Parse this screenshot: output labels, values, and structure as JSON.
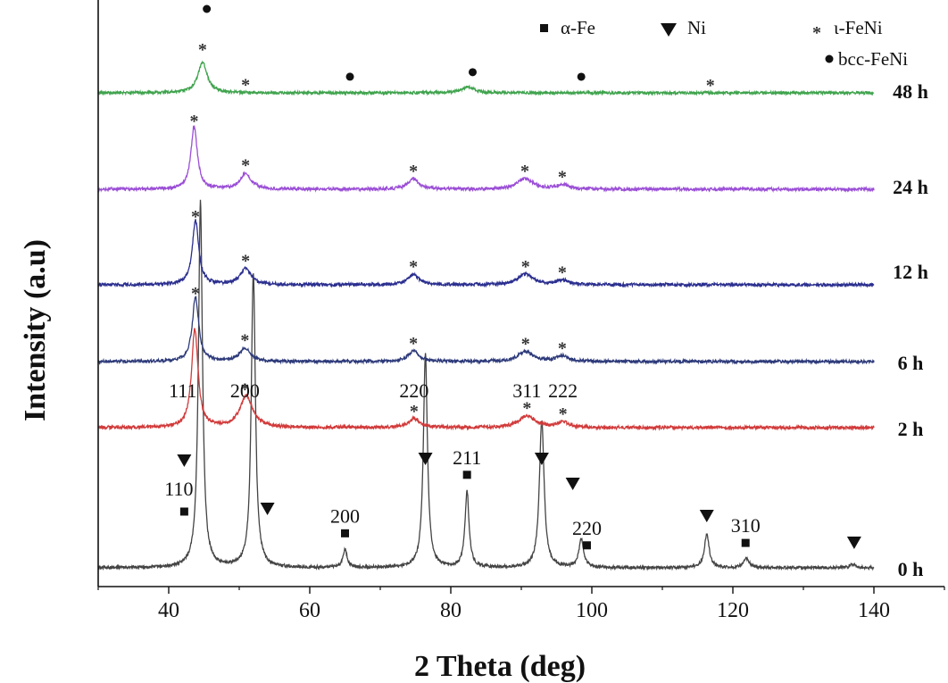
{
  "chart_data": {
    "type": "line",
    "xlabel": "2 Theta (deg)",
    "ylabel": "Intensity (a.u)",
    "xlim": [
      30,
      150
    ],
    "x_ticks": [
      40,
      60,
      80,
      100,
      120,
      140
    ],
    "x_tick_labels": [
      "40",
      "60",
      "80",
      "100",
      "120",
      "140"
    ],
    "y_ticks_shown": false,
    "legend": {
      "placement": "top-right",
      "entries": [
        {
          "marker": "square",
          "label": "α-Fe"
        },
        {
          "marker": "triangle-down",
          "label": "Ni"
        },
        {
          "marker": "star",
          "label": "ι-FeNi"
        },
        {
          "marker": "circle",
          "label": "bcc-FeNi"
        }
      ]
    },
    "series": [
      {
        "label": "0 h",
        "color": "#444444",
        "x_range": [
          30,
          140
        ],
        "peaks": [
          {
            "x": 44.5,
            "h": 410,
            "w": 0.35
          },
          {
            "x": 52.0,
            "h": 330,
            "w": 0.35
          },
          {
            "x": 65.0,
            "h": 20,
            "w": 0.35
          },
          {
            "x": 76.4,
            "h": 240,
            "w": 0.35
          },
          {
            "x": 82.3,
            "h": 85,
            "w": 0.35
          },
          {
            "x": 92.9,
            "h": 165,
            "w": 0.4
          },
          {
            "x": 98.5,
            "h": 32,
            "w": 0.4
          },
          {
            "x": 116.3,
            "h": 38,
            "w": 0.4
          },
          {
            "x": 121.9,
            "h": 10,
            "w": 0.5
          },
          {
            "x": 137.0,
            "h": 4,
            "w": 0.5
          }
        ]
      },
      {
        "label": "2 h",
        "color": "#d23b3b",
        "x_range": [
          30,
          140
        ],
        "peaks": [
          {
            "x": 43.7,
            "h": 110,
            "w": 0.55
          },
          {
            "x": 51.0,
            "h": 35,
            "w": 1.1
          },
          {
            "x": 74.8,
            "h": 10,
            "w": 1.0
          },
          {
            "x": 90.8,
            "h": 13,
            "w": 1.4
          },
          {
            "x": 95.9,
            "h": 6,
            "w": 1.0
          }
        ]
      },
      {
        "label": "6 h",
        "color": "#2d3a7a",
        "x_range": [
          30,
          140
        ],
        "peaks": [
          {
            "x": 43.8,
            "h": 72,
            "w": 0.55
          },
          {
            "x": 50.8,
            "h": 15,
            "w": 0.9
          },
          {
            "x": 74.7,
            "h": 12,
            "w": 0.9
          },
          {
            "x": 90.6,
            "h": 11,
            "w": 1.3
          },
          {
            "x": 95.8,
            "h": 6,
            "w": 1.0
          }
        ]
      },
      {
        "label": "12 h",
        "color": "#2b2f8f",
        "x_range": [
          30,
          140
        ],
        "peaks": [
          {
            "x": 43.8,
            "h": 72,
            "w": 0.55
          },
          {
            "x": 50.9,
            "h": 18,
            "w": 0.9
          },
          {
            "x": 74.7,
            "h": 12,
            "w": 0.9
          },
          {
            "x": 90.6,
            "h": 12,
            "w": 1.3
          },
          {
            "x": 95.8,
            "h": 5,
            "w": 1.0
          }
        ]
      },
      {
        "label": "24 h",
        "color": "#9b4fd6",
        "x_range": [
          30,
          140
        ],
        "peaks": [
          {
            "x": 43.6,
            "h": 70,
            "w": 0.55
          },
          {
            "x": 50.9,
            "h": 18,
            "w": 0.9
          },
          {
            "x": 74.7,
            "h": 12,
            "w": 0.9
          },
          {
            "x": 90.5,
            "h": 12,
            "w": 1.3
          },
          {
            "x": 95.8,
            "h": 5,
            "w": 1.0
          }
        ]
      },
      {
        "label": "48 h",
        "color": "#3fa34d",
        "x_range": [
          30,
          140
        ],
        "peaks": [
          {
            "x": 44.8,
            "h": 34,
            "w": 0.8
          },
          {
            "x": 82.5,
            "h": 7,
            "w": 1.0
          }
        ]
      }
    ],
    "markers": [
      {
        "s": "0 h",
        "x": 42.2,
        "m": "sq",
        "l": "110"
      },
      {
        "s": "0 h",
        "x": 42.2,
        "m": "tri",
        "l": ""
      },
      {
        "s": "0 h",
        "x": 54.0,
        "m": "tri",
        "l": ""
      },
      {
        "s": "0 h",
        "x": 65.0,
        "m": "sq",
        "l": "200"
      },
      {
        "s": "0 h",
        "x": 76.4,
        "m": "tri",
        "l": ""
      },
      {
        "s": "0 h",
        "x": 82.3,
        "m": "sq",
        "l": "211"
      },
      {
        "s": "0 h",
        "x": 92.9,
        "m": "tri",
        "l": ""
      },
      {
        "s": "0 h",
        "x": 97.3,
        "m": "tri",
        "l": ""
      },
      {
        "s": "0 h",
        "x": 99.3,
        "m": "sq",
        "l": "220"
      },
      {
        "s": "0 h",
        "x": 116.3,
        "m": "tri",
        "l": ""
      },
      {
        "s": "0 h",
        "x": 121.8,
        "m": "sq",
        "l": "310"
      },
      {
        "s": "0 h",
        "x": 137.2,
        "m": "tri",
        "l": ""
      },
      {
        "s": "2 h",
        "x": 42.0,
        "m": "",
        "l": "111"
      },
      {
        "s": "2 h",
        "x": 50.8,
        "m": "st",
        "l": "200"
      },
      {
        "s": "2 h",
        "x": 74.8,
        "m": "st",
        "l": "220"
      },
      {
        "s": "2 h",
        "x": 90.8,
        "m": "st",
        "l": "311"
      },
      {
        "s": "2 h",
        "x": 95.9,
        "m": "st",
        "l": "222"
      },
      {
        "s": "6 h",
        "x": 43.8,
        "m": "st",
        "l": ""
      },
      {
        "s": "6 h",
        "x": 50.8,
        "m": "st",
        "l": ""
      },
      {
        "s": "6 h",
        "x": 74.7,
        "m": "st",
        "l": ""
      },
      {
        "s": "6 h",
        "x": 90.6,
        "m": "st",
        "l": ""
      },
      {
        "s": "6 h",
        "x": 95.8,
        "m": "st",
        "l": ""
      },
      {
        "s": "12 h",
        "x": 43.8,
        "m": "st",
        "l": ""
      },
      {
        "s": "12 h",
        "x": 50.9,
        "m": "st",
        "l": ""
      },
      {
        "s": "12 h",
        "x": 74.7,
        "m": "st",
        "l": ""
      },
      {
        "s": "12 h",
        "x": 90.6,
        "m": "st",
        "l": ""
      },
      {
        "s": "12 h",
        "x": 95.8,
        "m": "st",
        "l": ""
      },
      {
        "s": "24 h",
        "x": 43.6,
        "m": "st",
        "l": ""
      },
      {
        "s": "24 h",
        "x": 50.9,
        "m": "st",
        "l": ""
      },
      {
        "s": "24 h",
        "x": 74.7,
        "m": "st",
        "l": ""
      },
      {
        "s": "24 h",
        "x": 90.5,
        "m": "st",
        "l": ""
      },
      {
        "s": "24 h",
        "x": 95.8,
        "m": "st",
        "l": ""
      },
      {
        "s": "48 h",
        "x": 44.8,
        "m": "st",
        "l": ""
      },
      {
        "s": "48 h",
        "x": 45.4,
        "m": "ci",
        "l": ""
      },
      {
        "s": "48 h",
        "x": 50.9,
        "m": "st",
        "l": ""
      },
      {
        "s": "48 h",
        "x": 65.7,
        "m": "ci",
        "l": ""
      },
      {
        "s": "48 h",
        "x": 83.1,
        "m": "ci",
        "l": ""
      },
      {
        "s": "48 h",
        "x": 98.5,
        "m": "ci",
        "l": ""
      },
      {
        "s": "48 h",
        "x": 116.8,
        "m": "st",
        "l": ""
      }
    ]
  }
}
